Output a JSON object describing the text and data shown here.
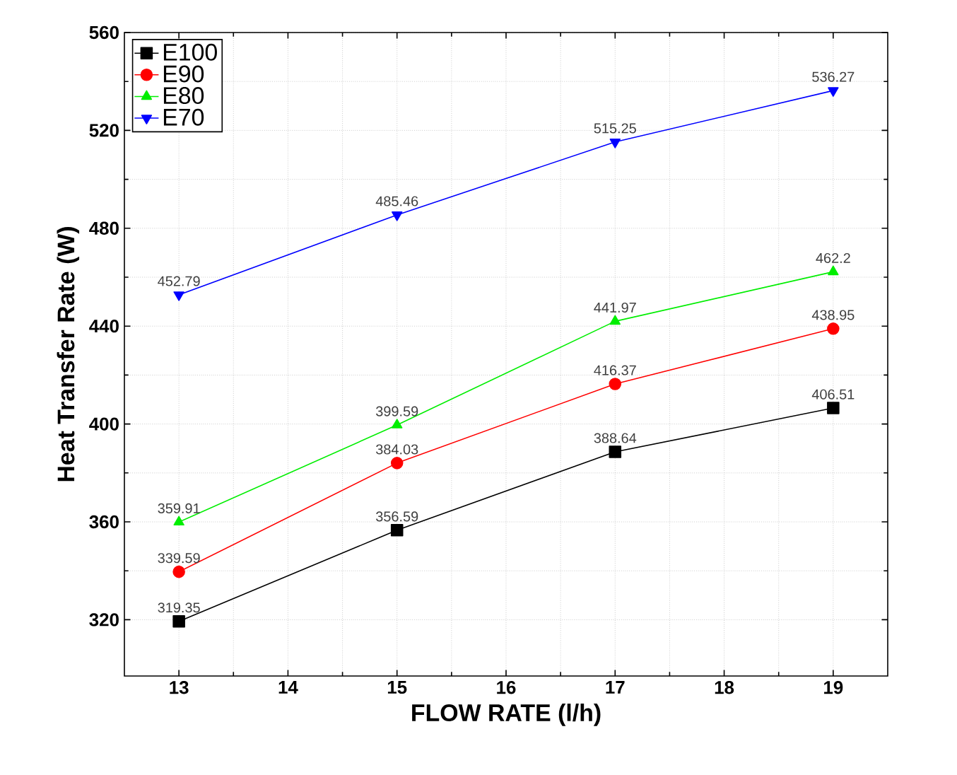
{
  "chart_data": {
    "type": "line",
    "xlabel": "FLOW RATE (l/h)",
    "ylabel": "Heat Transfer Rate (W)",
    "x": [
      13,
      15,
      17,
      19
    ],
    "series": [
      {
        "name": "E100",
        "color": "#000000",
        "marker": "square",
        "values": [
          319.35,
          356.59,
          388.64,
          406.51
        ]
      },
      {
        "name": "E90",
        "color": "#ff0000",
        "marker": "circle",
        "values": [
          339.59,
          384.03,
          416.37,
          438.95
        ]
      },
      {
        "name": "E80",
        "color": "#00ee00",
        "marker": "triangle",
        "values": [
          359.91,
          399.59,
          441.97,
          462.2
        ]
      },
      {
        "name": "E70",
        "color": "#0000ff",
        "marker": "triangle_down",
        "values": [
          452.79,
          485.46,
          515.25,
          536.27
        ]
      }
    ],
    "xlim": [
      12.5,
      19.5
    ],
    "xticks": [
      13,
      14,
      15,
      16,
      17,
      18,
      19
    ],
    "ylim": [
      297,
      560
    ],
    "yticks": [
      320,
      360,
      400,
      440,
      480,
      520,
      560
    ],
    "grid": true,
    "legend": "top left",
    "data_labels": true,
    "line_style": "solid"
  }
}
